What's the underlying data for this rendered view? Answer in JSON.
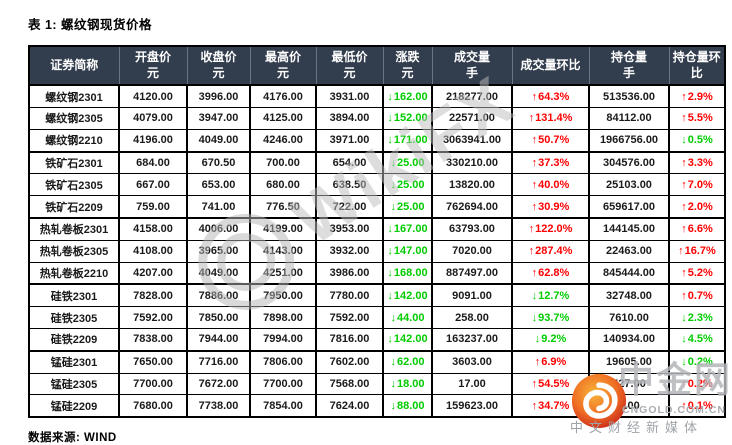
{
  "colors": {
    "header_bg": "#323d4d",
    "green": "#00cc00",
    "red": "#fe0000",
    "watermark_gray": "#bdbdbd",
    "cngold_logo_red": "#c81e17",
    "cngold_logo_orange": "#f5a52f"
  },
  "icons": {
    "down_arrow": "↓",
    "up_arrow": "↑"
  },
  "watermarks": {
    "wikifx_text": "WikiFX",
    "cngold_name": "中金网",
    "cngold_domain": "CNGOLD.COM.CN",
    "cngold_tagline": "中文财经新媒体"
  },
  "chart_data": {
    "type": "table",
    "title": "表 1: 螺纹钢现货价格",
    "source": "数据来源: WIND",
    "columns": [
      {
        "label": "证券简称",
        "unit": ""
      },
      {
        "label": "开盘价",
        "unit": "元"
      },
      {
        "label": "收盘价",
        "unit": "元"
      },
      {
        "label": "最高价",
        "unit": "元"
      },
      {
        "label": "最低价",
        "unit": "元"
      },
      {
        "label": "涨跌",
        "unit": "元"
      },
      {
        "label": "成交量",
        "unit": "手"
      },
      {
        "label": "成交量环比",
        "unit": ""
      },
      {
        "label": "持仓量",
        "unit": "手"
      },
      {
        "label": "持仓量环比",
        "unit": ""
      }
    ],
    "rows": [
      {
        "name": "螺纹钢2301",
        "open": "4120.00",
        "close": "3996.00",
        "high": "4176.00",
        "low": "3931.00",
        "change": {
          "arrow": "down",
          "text": "162.00",
          "color": "green"
        },
        "volume": "218277.00",
        "volume_mom": {
          "arrow": "up",
          "text": "64.3%",
          "color": "red"
        },
        "open_interest": "513536.00",
        "oi_mom": {
          "arrow": "up",
          "text": "2.9%",
          "color": "red"
        }
      },
      {
        "name": "螺纹钢2305",
        "open": "4079.00",
        "close": "3947.00",
        "high": "4125.00",
        "low": "3894.00",
        "change": {
          "arrow": "down",
          "text": "152.00",
          "color": "green"
        },
        "volume": "22571.00",
        "volume_mom": {
          "arrow": "up",
          "text": "131.4%",
          "color": "red"
        },
        "open_interest": "84112.00",
        "oi_mom": {
          "arrow": "up",
          "text": "5.5%",
          "color": "red"
        }
      },
      {
        "name": "螺纹钢2210",
        "open": "4196.00",
        "close": "4049.00",
        "high": "4246.00",
        "low": "3971.00",
        "change": {
          "arrow": "down",
          "text": "171.00",
          "color": "green"
        },
        "volume": "3063941.00",
        "volume_mom": {
          "arrow": "up",
          "text": "50.7%",
          "color": "red"
        },
        "open_interest": "1966756.00",
        "oi_mom": {
          "arrow": "down",
          "text": "0.5%",
          "color": "green"
        }
      },
      {
        "name": "铁矿石2301",
        "open": "684.00",
        "close": "670.50",
        "high": "700.00",
        "low": "654.00",
        "change": {
          "arrow": "down",
          "text": "25.00",
          "color": "green"
        },
        "volume": "330210.00",
        "volume_mom": {
          "arrow": "up",
          "text": "37.3%",
          "color": "red"
        },
        "open_interest": "304576.00",
        "oi_mom": {
          "arrow": "up",
          "text": "3.3%",
          "color": "red"
        }
      },
      {
        "name": "铁矿石2305",
        "open": "667.00",
        "close": "653.00",
        "high": "680.00",
        "low": "638.50",
        "change": {
          "arrow": "down",
          "text": "25.00",
          "color": "green"
        },
        "volume": "13820.00",
        "volume_mom": {
          "arrow": "up",
          "text": "40.0%",
          "color": "red"
        },
        "open_interest": "25103.00",
        "oi_mom": {
          "arrow": "up",
          "text": "7.0%",
          "color": "red"
        }
      },
      {
        "name": "铁矿石2209",
        "open": "759.00",
        "close": "741.00",
        "high": "776.50",
        "low": "722.00",
        "change": {
          "arrow": "down",
          "text": "25.00",
          "color": "green"
        },
        "volume": "762694.00",
        "volume_mom": {
          "arrow": "up",
          "text": "30.9%",
          "color": "red"
        },
        "open_interest": "659617.00",
        "oi_mom": {
          "arrow": "up",
          "text": "2.0%",
          "color": "red"
        }
      },
      {
        "name": "热轧卷板2301",
        "open": "4158.00",
        "close": "4006.00",
        "high": "4199.00",
        "low": "3953.00",
        "change": {
          "arrow": "down",
          "text": "167.00",
          "color": "green"
        },
        "volume": "63793.00",
        "volume_mom": {
          "arrow": "up",
          "text": "122.0%",
          "color": "red"
        },
        "open_interest": "144145.00",
        "oi_mom": {
          "arrow": "up",
          "text": "6.6%",
          "color": "red"
        }
      },
      {
        "name": "热轧卷板2305",
        "open": "4108.00",
        "close": "3965.00",
        "high": "4143.00",
        "low": "3932.00",
        "change": {
          "arrow": "down",
          "text": "147.00",
          "color": "green"
        },
        "volume": "7020.00",
        "volume_mom": {
          "arrow": "up",
          "text": "287.4%",
          "color": "red"
        },
        "open_interest": "22463.00",
        "oi_mom": {
          "arrow": "up",
          "text": "16.7%",
          "color": "red"
        }
      },
      {
        "name": "热轧卷板2210",
        "open": "4207.00",
        "close": "4049.00",
        "high": "4251.00",
        "low": "3986.00",
        "change": {
          "arrow": "down",
          "text": "168.00",
          "color": "green"
        },
        "volume": "887497.00",
        "volume_mom": {
          "arrow": "up",
          "text": "62.8%",
          "color": "red"
        },
        "open_interest": "845444.00",
        "oi_mom": {
          "arrow": "up",
          "text": "5.2%",
          "color": "red"
        }
      },
      {
        "name": "硅铁2301",
        "open": "7828.00",
        "close": "7886.00",
        "high": "7950.00",
        "low": "7780.00",
        "change": {
          "arrow": "down",
          "text": "142.00",
          "color": "green"
        },
        "volume": "9091.00",
        "volume_mom": {
          "arrow": "down",
          "text": "12.7%",
          "color": "green"
        },
        "open_interest": "32748.00",
        "oi_mom": {
          "arrow": "up",
          "text": "0.7%",
          "color": "red"
        }
      },
      {
        "name": "硅铁2305",
        "open": "7592.00",
        "close": "7850.00",
        "high": "7898.00",
        "low": "7592.00",
        "change": {
          "arrow": "down",
          "text": "44.00",
          "color": "green"
        },
        "volume": "258.00",
        "volume_mom": {
          "arrow": "down",
          "text": "93.7%",
          "color": "green"
        },
        "open_interest": "7610.00",
        "oi_mom": {
          "arrow": "down",
          "text": "2.3%",
          "color": "green"
        }
      },
      {
        "name": "硅铁2209",
        "open": "7838.00",
        "close": "7944.00",
        "high": "7994.00",
        "low": "7816.00",
        "change": {
          "arrow": "down",
          "text": "142.00",
          "color": "green"
        },
        "volume": "163237.00",
        "volume_mom": {
          "arrow": "down",
          "text": "9.2%",
          "color": "green"
        },
        "open_interest": "140934.00",
        "oi_mom": {
          "arrow": "down",
          "text": "4.5%",
          "color": "green"
        }
      },
      {
        "name": "锰硅2301",
        "open": "7650.00",
        "close": "7716.00",
        "high": "7806.00",
        "low": "7602.00",
        "change": {
          "arrow": "down",
          "text": "62.00",
          "color": "green"
        },
        "volume": "3603.00",
        "volume_mom": {
          "arrow": "up",
          "text": "6.9%",
          "color": "red"
        },
        "open_interest": "19605.00",
        "oi_mom": {
          "arrow": "down",
          "text": "0.2%",
          "color": "green"
        }
      },
      {
        "name": "锰硅2305",
        "open": "7700.00",
        "close": "7672.00",
        "high": "7700.00",
        "low": "7568.00",
        "change": {
          "arrow": "down",
          "text": "18.00",
          "color": "green"
        },
        "volume": "17.00",
        "volume_mom": {
          "arrow": "up",
          "text": "54.5%",
          "color": "red"
        },
        "open_interest": "527.00",
        "oi_mom": {
          "arrow": "up",
          "text": "0.2%",
          "color": "red"
        }
      },
      {
        "name": "锰硅2209",
        "open": "7680.00",
        "close": "7738.00",
        "high": "7854.00",
        "low": "7624.00",
        "change": {
          "arrow": "down",
          "text": "88.00",
          "color": "green"
        },
        "volume": "159623.00",
        "volume_mom": {
          "arrow": "up",
          "text": "34.7%",
          "color": "red"
        },
        "open_interest": "1.00",
        "oi_mom": {
          "arrow": "up",
          "text": "0.1%",
          "color": "red"
        }
      }
    ]
  }
}
